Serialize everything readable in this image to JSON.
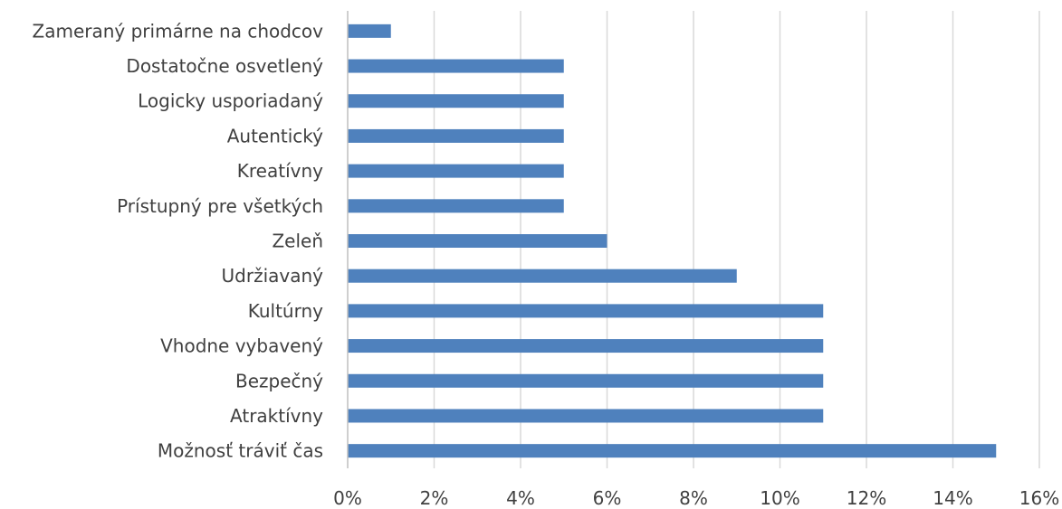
{
  "chart_data": {
    "type": "bar",
    "orientation": "horizontal",
    "title": "",
    "xlabel": "",
    "ylabel": "",
    "categories": [
      "Zameraný primárne na chodcov",
      "Dostatočne osvetlený",
      "Logicky usporiadaný",
      "Autentický",
      "Kreatívny",
      "Prístupný pre všetkých",
      "Zeleň",
      "Udržiavaný",
      "Kultúrny",
      "Vhodne vybavený",
      "Bezpečný",
      "Atraktívny",
      "Možnosť tráviť čas"
    ],
    "values": [
      1,
      5,
      5,
      5,
      5,
      5,
      6,
      9,
      11,
      11,
      11,
      11,
      15
    ],
    "unit": "%",
    "xlim": [
      0,
      16
    ],
    "xticks": [
      0,
      2,
      4,
      6,
      8,
      10,
      12,
      14,
      16
    ],
    "xtick_labels": [
      "0%",
      "2%",
      "4%",
      "6%",
      "8%",
      "10%",
      "12%",
      "14%",
      "16%"
    ],
    "grid": true,
    "legend": "none",
    "bar_color": "#4f81bd"
  }
}
